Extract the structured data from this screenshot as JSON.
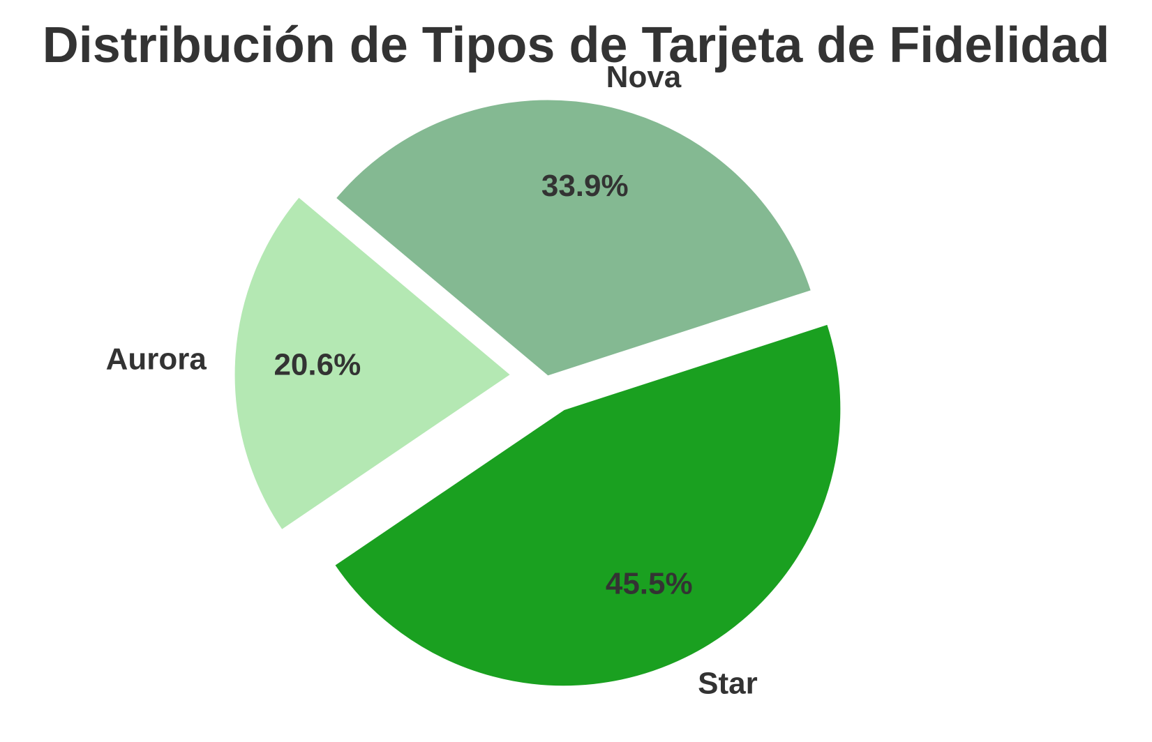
{
  "colors": {
    "text": "#333333",
    "background": "#ffffff",
    "slice_edge": "#ffffff"
  },
  "chart_data": {
    "type": "pie",
    "title": "Distribución de Tipos de Tarjeta de Fidelidad",
    "start_angle_deg": 140,
    "direction": "counterclockwise",
    "legend": "none",
    "slices": [
      {
        "label": "Aurora",
        "value": 20.6,
        "pct_label": "20.6%",
        "color": "#b4e8b3",
        "exploded": true
      },
      {
        "label": "Star",
        "value": 45.5,
        "pct_label": "45.5%",
        "color": "#1aa020",
        "exploded": true
      },
      {
        "label": "Nova",
        "value": 33.9,
        "pct_label": "33.9%",
        "color": "#84b992",
        "exploded": false
      }
    ]
  }
}
